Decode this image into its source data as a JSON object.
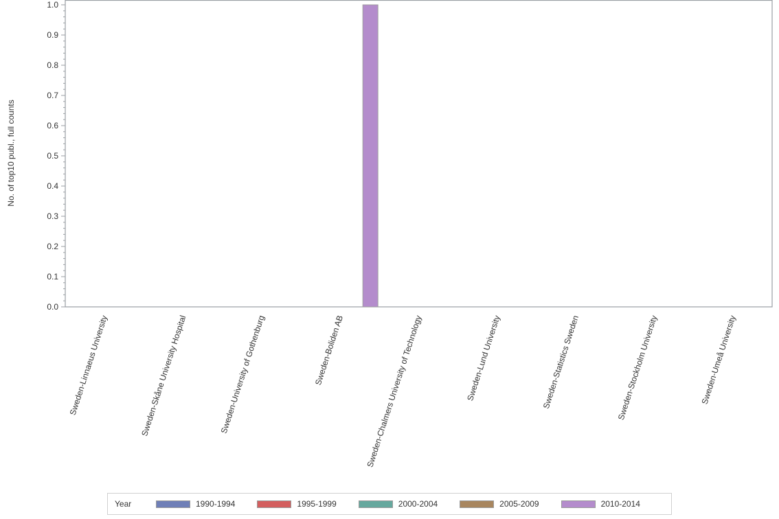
{
  "chart_data": {
    "type": "bar",
    "title": "",
    "xlabel": "",
    "ylabel": "No. of top10 publ., full counts",
    "ylim": [
      0,
      1.0
    ],
    "yticks": [
      "0.0",
      "0.1",
      "0.2",
      "0.3",
      "0.4",
      "0.5",
      "0.6",
      "0.7",
      "0.8",
      "0.9",
      "1.0"
    ],
    "grid": false,
    "legend_position": "bottom",
    "categories": [
      "Sweden-Linnaeus University",
      "Sweden-Skåne University Hospital",
      "Sweden-University of Gothenburg",
      "Sweden-Boliden AB",
      "Sweden-Chalmers University of Technology",
      "Sweden-Lund University",
      "Sweden-Statistics Sweden",
      "Sweden-Stockholm University",
      "Sweden-Umeå University"
    ],
    "series": [
      {
        "name": "1990-1994",
        "color": "#6f7fb7",
        "values": [
          0,
          0,
          0,
          0,
          0,
          0,
          0,
          0,
          0
        ]
      },
      {
        "name": "1995-1999",
        "color": "#d35f5f",
        "values": [
          0,
          0,
          0,
          0,
          0,
          0,
          0,
          0,
          0
        ]
      },
      {
        "name": "2000-2004",
        "color": "#66a89e",
        "values": [
          0,
          0,
          0,
          0,
          0,
          0,
          0,
          0,
          0
        ]
      },
      {
        "name": "2005-2009",
        "color": "#a8865f",
        "values": [
          0,
          0,
          0,
          0,
          0,
          0,
          0,
          0,
          0
        ]
      },
      {
        "name": "2010-2014",
        "color": "#b48ccc",
        "values": [
          0,
          0,
          0,
          1.0,
          0,
          0,
          0,
          0,
          0
        ]
      }
    ]
  },
  "legend": {
    "title": "Year",
    "items": [
      {
        "label": "1990-1994",
        "color": "#6f7fb7"
      },
      {
        "label": "1995-1999",
        "color": "#d35f5f"
      },
      {
        "label": "2000-2004",
        "color": "#66a89e"
      },
      {
        "label": "2005-2009",
        "color": "#a8865f"
      },
      {
        "label": "2010-2014",
        "color": "#b48ccc"
      }
    ]
  }
}
